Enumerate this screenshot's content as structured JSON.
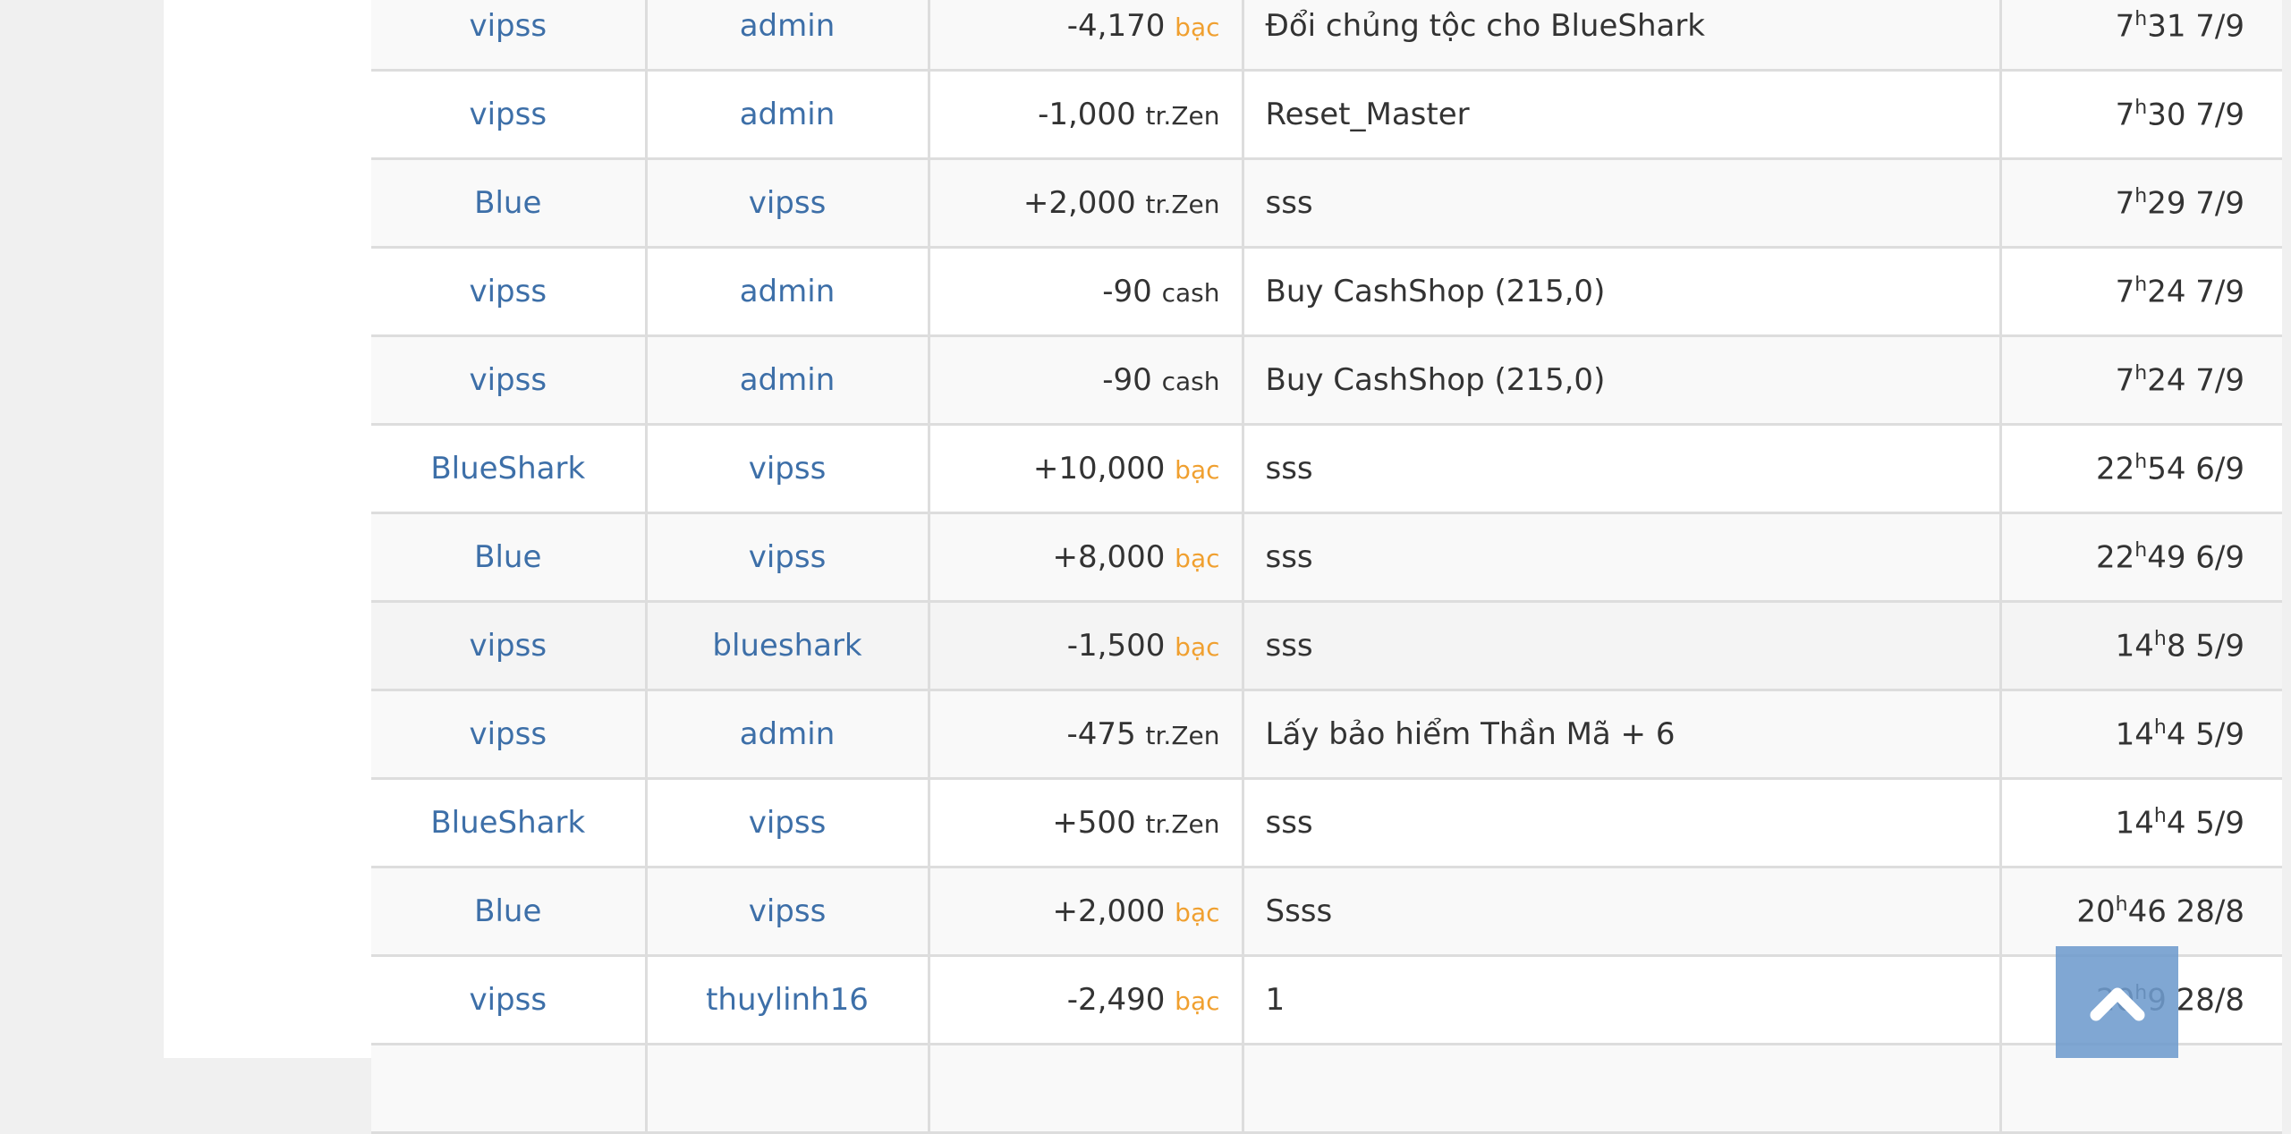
{
  "colors": {
    "link": "#3d6fa8",
    "unit_bac": "#f0a030",
    "scroll_button": "#7ba5d4"
  },
  "rows": [
    {
      "from": "vipss",
      "to": "admin",
      "amount": "-4,170",
      "unit": "bạc",
      "note": "Đổi chủng tộc cho BlueShark",
      "hour": "7",
      "minute": "31",
      "date": "7/9"
    },
    {
      "from": "vipss",
      "to": "admin",
      "amount": "-1,000",
      "unit": "tr.Zen",
      "note": "Reset_Master",
      "hour": "7",
      "minute": "30",
      "date": "7/9"
    },
    {
      "from": "Blue",
      "to": "vipss",
      "amount": "+2,000",
      "unit": "tr.Zen",
      "note": "sss",
      "hour": "7",
      "minute": "29",
      "date": "7/9"
    },
    {
      "from": "vipss",
      "to": "admin",
      "amount": "-90",
      "unit": "cash",
      "note": "Buy CashShop (215,0)",
      "hour": "7",
      "minute": "24",
      "date": "7/9"
    },
    {
      "from": "vipss",
      "to": "admin",
      "amount": "-90",
      "unit": "cash",
      "note": "Buy CashShop (215,0)",
      "hour": "7",
      "minute": "24",
      "date": "7/9"
    },
    {
      "from": "BlueShark",
      "to": "vipss",
      "amount": "+10,000",
      "unit": "bạc",
      "note": "sss",
      "hour": "22",
      "minute": "54",
      "date": "6/9"
    },
    {
      "from": "Blue",
      "to": "vipss",
      "amount": "+8,000",
      "unit": "bạc",
      "note": "sss",
      "hour": "22",
      "minute": "49",
      "date": "6/9"
    },
    {
      "from": "vipss",
      "to": "blueshark",
      "amount": "-1,500",
      "unit": "bạc",
      "note": "sss",
      "hour": "14",
      "minute": "8",
      "date": "5/9"
    },
    {
      "from": "vipss",
      "to": "admin",
      "amount": "-475",
      "unit": "tr.Zen",
      "note": "Lấy bảo hiểm Thần Mã + 6",
      "hour": "14",
      "minute": "4",
      "date": "5/9"
    },
    {
      "from": "BlueShark",
      "to": "vipss",
      "amount": "+500",
      "unit": "tr.Zen",
      "note": "sss",
      "hour": "14",
      "minute": "4",
      "date": "5/9"
    },
    {
      "from": "Blue",
      "to": "vipss",
      "amount": "+2,000",
      "unit": "bạc",
      "note": "Ssss",
      "hour": "20",
      "minute": "46",
      "date": "28/8"
    },
    {
      "from": "vipss",
      "to": "thuylinh16",
      "amount": "-2,490",
      "unit": "bạc",
      "note": "1",
      "hour": "20",
      "minute": "9",
      "date": "28/8"
    },
    {
      "from": "",
      "to": "",
      "amount": "",
      "unit": "",
      "note": "",
      "hour": "",
      "minute": "",
      "date": ""
    }
  ],
  "time_separator": "h",
  "scroll_top": {
    "icon": "chevron-up-icon"
  }
}
